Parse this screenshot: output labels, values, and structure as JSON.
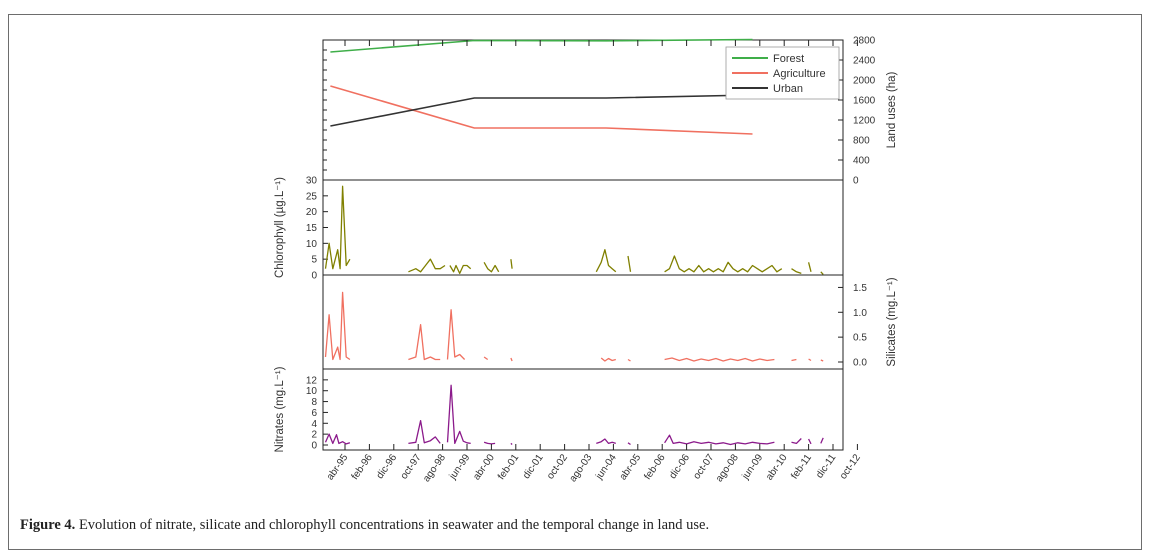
{
  "caption": {
    "label": "Figure 4.",
    "text": " Evolution of nitrate, silicate and chlorophyll concentrations in seawater and the temporal change in land use."
  },
  "x_ticks": [
    "abr-95",
    "feb-96",
    "dic-96",
    "oct-97",
    "ago-98",
    "jun-99",
    "abr-00",
    "feb-01",
    "dic-01",
    "oct-02",
    "ago-03",
    "jun-04",
    "abr-05",
    "feb-06",
    "dic-06",
    "oct-07",
    "ago-08",
    "jun-09",
    "abr-10",
    "feb-11",
    "dic-11",
    "oct-12"
  ],
  "chart_data": [
    {
      "type": "line",
      "panel": "land-use",
      "ylabel": "Land uses (ha)",
      "y_axis_side": "right",
      "ylim": [
        0,
        2800
      ],
      "yticks": [
        0,
        400,
        800,
        1200,
        1600,
        2000,
        2400,
        2800
      ],
      "legend": "top-right",
      "series": [
        {
          "name": "Forest",
          "color": "#3fae49",
          "points": [
            [
              -0.6,
              2560
            ],
            [
              5.3,
              2790
            ],
            [
              10.7,
              2785
            ],
            [
              16.7,
              2810
            ]
          ]
        },
        {
          "name": "Agriculture",
          "color": "#f07060",
          "points": [
            [
              -0.6,
              1880
            ],
            [
              5.3,
              1040
            ],
            [
              10.7,
              1040
            ],
            [
              16.7,
              920
            ]
          ]
        },
        {
          "name": "Urban",
          "color": "#333333",
          "points": [
            [
              -0.6,
              1080
            ],
            [
              5.3,
              1640
            ],
            [
              10.7,
              1640
            ],
            [
              16.7,
              1700
            ]
          ]
        }
      ]
    },
    {
      "type": "line",
      "panel": "chlorophyll",
      "ylabel": "Chlorophyll (µg.L⁻¹)",
      "y_axis_side": "left",
      "ylim": [
        0,
        30
      ],
      "yticks": [
        0,
        5,
        10,
        15,
        20,
        25,
        30
      ],
      "color": "#808000",
      "segments": [
        [
          [
            -0.8,
            2
          ],
          [
            -0.65,
            10
          ],
          [
            -0.5,
            2
          ],
          [
            -0.3,
            8
          ],
          [
            -0.2,
            2
          ],
          [
            -0.1,
            28
          ],
          [
            0.05,
            3
          ],
          [
            0.2,
            5
          ]
        ],
        [
          [
            2.6,
            1
          ],
          [
            2.9,
            2
          ],
          [
            3.1,
            1
          ],
          [
            3.3,
            3
          ],
          [
            3.5,
            5
          ],
          [
            3.7,
            2
          ],
          [
            3.9,
            2
          ],
          [
            4.1,
            3
          ]
        ],
        [
          [
            4.3,
            3
          ],
          [
            4.45,
            1
          ],
          [
            4.55,
            3
          ],
          [
            4.7,
            0.5
          ],
          [
            4.85,
            3
          ],
          [
            5.0,
            3
          ],
          [
            5.15,
            2
          ]
        ],
        [
          [
            5.7,
            4
          ],
          [
            5.85,
            2
          ],
          [
            6.0,
            1
          ],
          [
            6.15,
            3
          ],
          [
            6.3,
            1
          ]
        ],
        [
          [
            6.8,
            5
          ],
          [
            6.85,
            2
          ]
        ],
        [
          [
            10.3,
            1
          ],
          [
            10.5,
            4
          ],
          [
            10.65,
            8
          ],
          [
            10.8,
            3
          ],
          [
            10.95,
            2
          ],
          [
            11.1,
            1
          ]
        ],
        [
          [
            11.6,
            6
          ],
          [
            11.7,
            1
          ]
        ],
        [
          [
            13.1,
            1
          ],
          [
            13.3,
            2
          ],
          [
            13.5,
            6
          ],
          [
            13.7,
            2
          ],
          [
            13.9,
            1
          ],
          [
            14.1,
            2
          ],
          [
            14.3,
            1
          ],
          [
            14.5,
            3
          ],
          [
            14.7,
            1
          ],
          [
            14.9,
            2
          ],
          [
            15.1,
            1
          ],
          [
            15.3,
            2
          ],
          [
            15.5,
            1
          ],
          [
            15.7,
            4
          ],
          [
            15.9,
            2
          ],
          [
            16.1,
            1
          ],
          [
            16.3,
            2
          ],
          [
            16.5,
            1
          ],
          [
            16.7,
            3
          ],
          [
            16.9,
            2
          ],
          [
            17.1,
            1
          ],
          [
            17.3,
            2
          ],
          [
            17.5,
            3
          ],
          [
            17.7,
            1
          ],
          [
            17.9,
            2
          ]
        ],
        [
          [
            18.3,
            2
          ],
          [
            18.5,
            1
          ],
          [
            18.7,
            0.5
          ]
        ],
        [
          [
            19.0,
            4
          ],
          [
            19.1,
            1
          ]
        ],
        [
          [
            19.5,
            1
          ],
          [
            19.6,
            0.2
          ]
        ]
      ]
    },
    {
      "type": "line",
      "panel": "silicates",
      "ylabel": "Silicates (mg.L⁻¹)",
      "y_axis_side": "right",
      "ylim": [
        0,
        1.75
      ],
      "yticks": [
        0.0,
        0.5,
        1.0,
        1.5
      ],
      "color": "#f07060",
      "segments": [
        [
          [
            -0.8,
            0.1
          ],
          [
            -0.65,
            0.95
          ],
          [
            -0.5,
            0.05
          ],
          [
            -0.3,
            0.3
          ],
          [
            -0.2,
            0.05
          ],
          [
            -0.1,
            1.4
          ],
          [
            0.05,
            0.1
          ],
          [
            0.2,
            0.05
          ]
        ],
        [
          [
            2.6,
            0.05
          ],
          [
            2.9,
            0.1
          ],
          [
            3.1,
            0.75
          ],
          [
            3.25,
            0.05
          ],
          [
            3.5,
            0.1
          ],
          [
            3.7,
            0.05
          ],
          [
            3.9,
            0.05
          ]
        ],
        [
          [
            4.2,
            0.05
          ],
          [
            4.35,
            1.05
          ],
          [
            4.5,
            0.1
          ],
          [
            4.7,
            0.15
          ],
          [
            4.9,
            0.05
          ]
        ],
        [
          [
            5.7,
            0.1
          ],
          [
            5.85,
            0.05
          ]
        ],
        [
          [
            6.8,
            0.08
          ],
          [
            6.85,
            0.02
          ]
        ],
        [
          [
            10.5,
            0.08
          ],
          [
            10.65,
            0.02
          ],
          [
            10.8,
            0.07
          ],
          [
            10.95,
            0.03
          ],
          [
            11.1,
            0.05
          ]
        ],
        [
          [
            11.6,
            0.05
          ],
          [
            11.7,
            0.02
          ]
        ],
        [
          [
            13.1,
            0.05
          ],
          [
            13.4,
            0.08
          ],
          [
            13.7,
            0.03
          ],
          [
            14.0,
            0.07
          ],
          [
            14.3,
            0.02
          ],
          [
            14.6,
            0.06
          ],
          [
            14.9,
            0.03
          ],
          [
            15.2,
            0.07
          ],
          [
            15.5,
            0.02
          ],
          [
            15.8,
            0.06
          ],
          [
            16.1,
            0.03
          ],
          [
            16.4,
            0.07
          ],
          [
            16.7,
            0.02
          ],
          [
            17.0,
            0.06
          ],
          [
            17.3,
            0.03
          ],
          [
            17.6,
            0.05
          ]
        ],
        [
          [
            18.3,
            0.03
          ],
          [
            18.5,
            0.05
          ]
        ],
        [
          [
            19.0,
            0.06
          ],
          [
            19.1,
            0.03
          ]
        ],
        [
          [
            19.5,
            0.04
          ],
          [
            19.6,
            0.02
          ]
        ]
      ]
    },
    {
      "type": "line",
      "panel": "nitrates",
      "ylabel": "Nitrates (mg.L⁻¹)",
      "y_axis_side": "left",
      "ylim": [
        0,
        14
      ],
      "yticks": [
        0,
        2,
        4,
        6,
        8,
        10,
        12
      ],
      "color": "#8b1a8b",
      "segments": [
        [
          [
            -0.8,
            0.5
          ],
          [
            -0.65,
            2
          ],
          [
            -0.5,
            0.3
          ],
          [
            -0.35,
            1.9
          ],
          [
            -0.25,
            0.3
          ],
          [
            -0.1,
            0.6
          ],
          [
            0.05,
            0.2
          ],
          [
            0.2,
            0.4
          ]
        ],
        [
          [
            2.6,
            0.3
          ],
          [
            2.9,
            0.5
          ],
          [
            3.1,
            4.5
          ],
          [
            3.25,
            0.4
          ],
          [
            3.5,
            0.8
          ],
          [
            3.7,
            1.5
          ],
          [
            3.9,
            0.3
          ]
        ],
        [
          [
            4.2,
            0.5
          ],
          [
            4.35,
            11
          ],
          [
            4.5,
            0.3
          ],
          [
            4.7,
            2.5
          ],
          [
            4.85,
            0.7
          ],
          [
            5.0,
            0.4
          ],
          [
            5.15,
            0.3
          ]
        ],
        [
          [
            5.7,
            0.5
          ],
          [
            5.85,
            0.3
          ],
          [
            6.0,
            0.2
          ],
          [
            6.15,
            0.3
          ]
        ],
        [
          [
            6.8,
            0.3
          ],
          [
            6.85,
            0.1
          ]
        ],
        [
          [
            10.3,
            0.3
          ],
          [
            10.5,
            0.6
          ],
          [
            10.65,
            1.1
          ],
          [
            10.8,
            0.3
          ],
          [
            10.95,
            0.5
          ],
          [
            11.1,
            0.3
          ]
        ],
        [
          [
            11.6,
            0.4
          ],
          [
            11.7,
            0.1
          ]
        ],
        [
          [
            13.1,
            0.4
          ],
          [
            13.3,
            1.8
          ],
          [
            13.45,
            0.3
          ],
          [
            13.7,
            0.5
          ],
          [
            14.0,
            0.2
          ],
          [
            14.3,
            0.6
          ],
          [
            14.6,
            0.3
          ],
          [
            14.9,
            0.5
          ],
          [
            15.2,
            0.2
          ],
          [
            15.5,
            0.4
          ],
          [
            15.8,
            0.1
          ],
          [
            16.1,
            0.4
          ],
          [
            16.4,
            0.2
          ],
          [
            16.7,
            0.5
          ],
          [
            17.0,
            0.3
          ],
          [
            17.3,
            0.2
          ],
          [
            17.6,
            0.5
          ]
        ],
        [
          [
            18.3,
            0.5
          ],
          [
            18.5,
            0.3
          ],
          [
            18.7,
            1.2
          ]
        ],
        [
          [
            19.0,
            1.1
          ],
          [
            19.1,
            0.2
          ]
        ],
        [
          [
            19.5,
            0.3
          ],
          [
            19.6,
            1.3
          ]
        ]
      ]
    }
  ]
}
